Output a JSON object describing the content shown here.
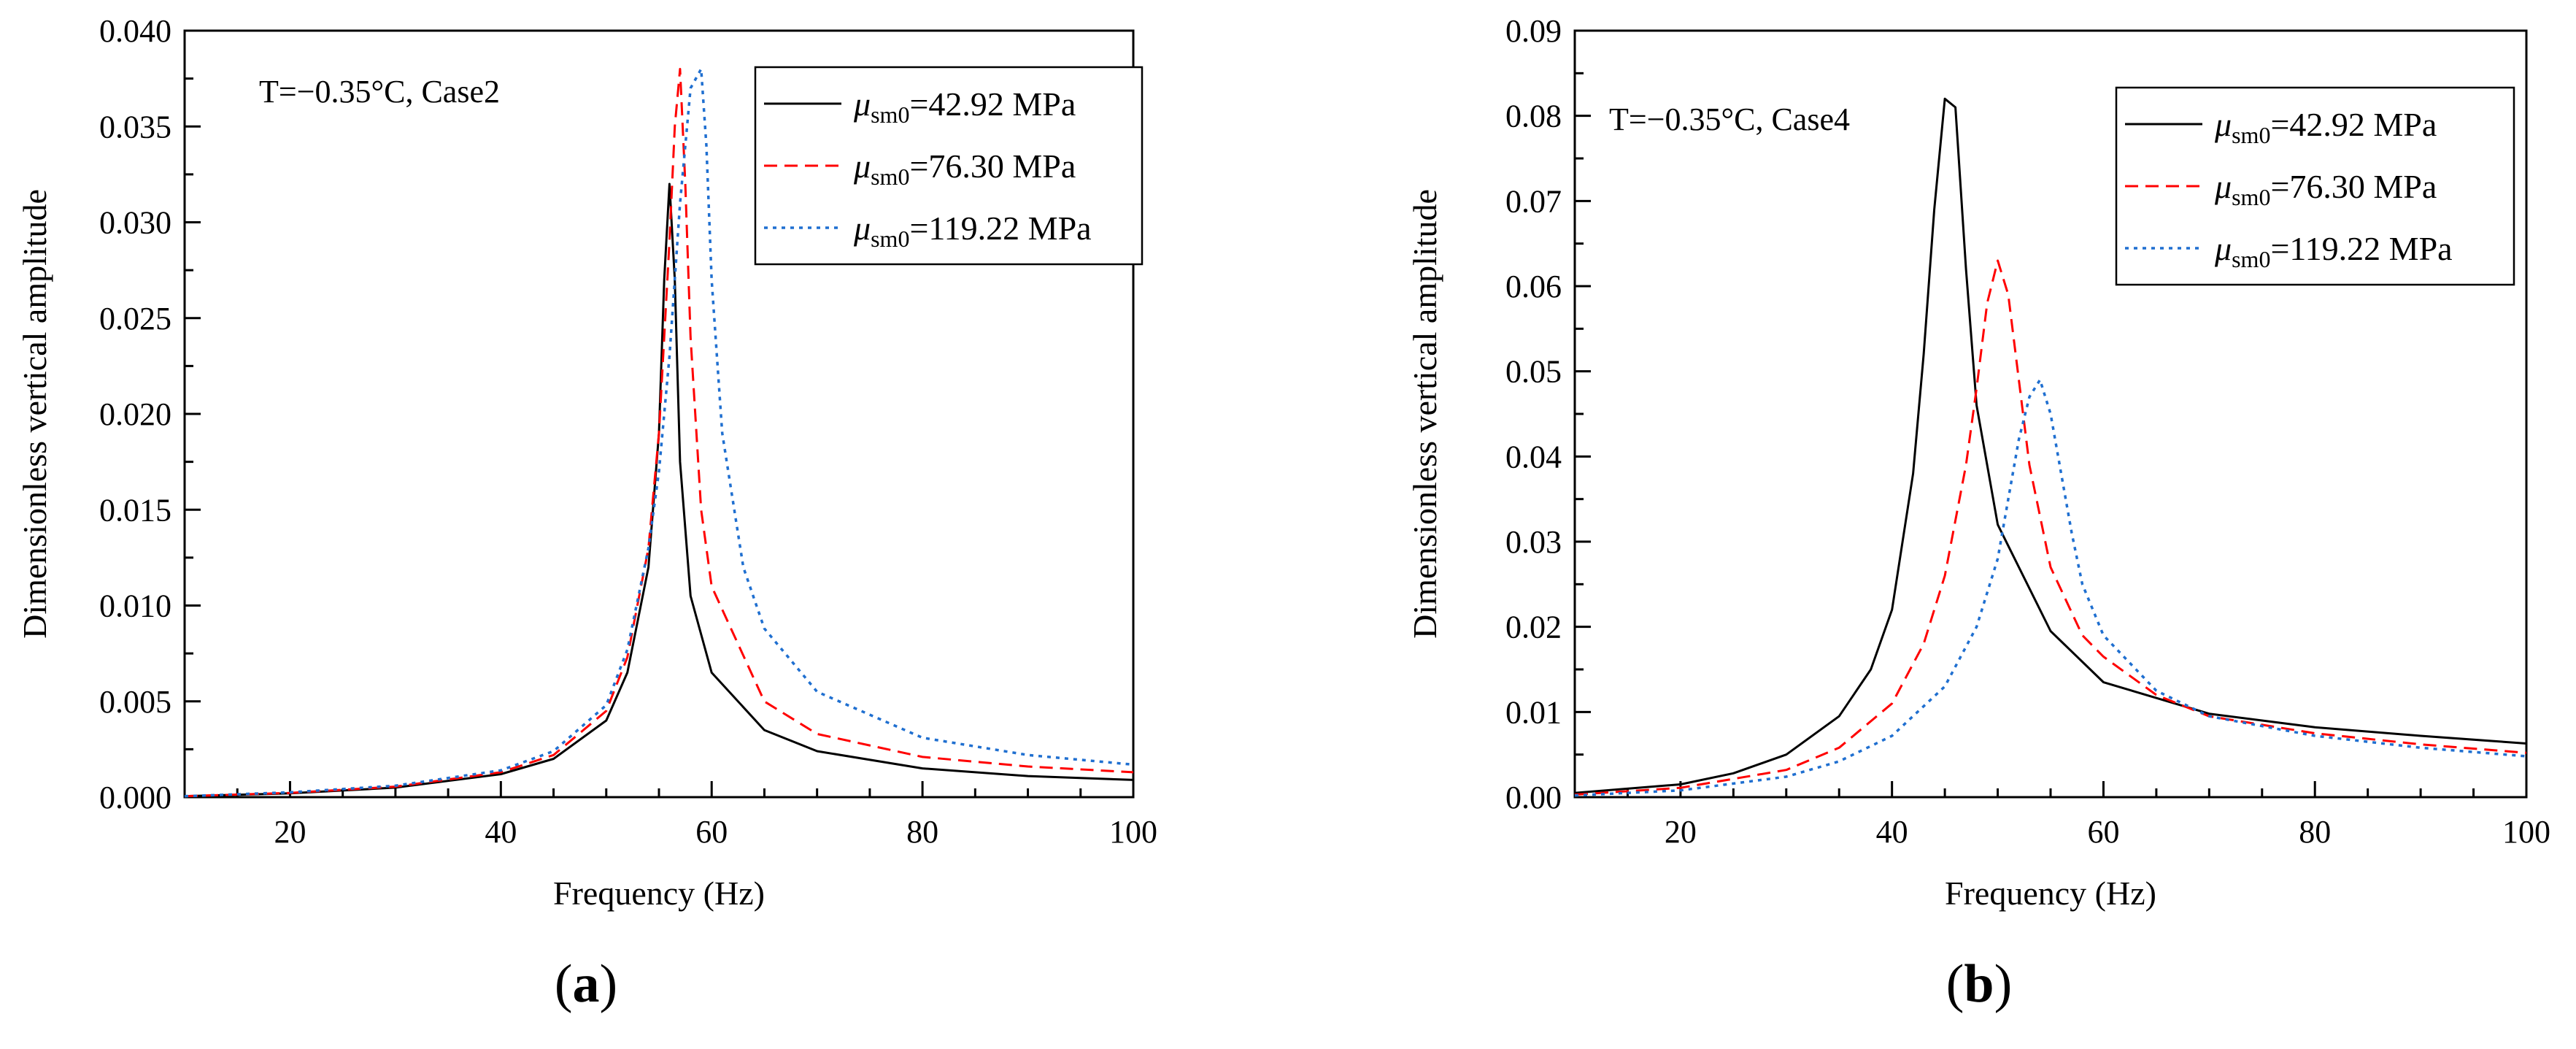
{
  "figure": {
    "panel_labels": [
      "(a)",
      "(b)"
    ]
  },
  "chart_data": [
    {
      "type": "line",
      "panel": "a",
      "annotation": "T=−0.35°C, Case2",
      "xlabel": "Frequency (Hz)",
      "ylabel": "Dimensionless vertical amplitude",
      "xlim": [
        10,
        100
      ],
      "ylim": [
        0,
        0.04
      ],
      "xticks": [
        20,
        40,
        60,
        80,
        100
      ],
      "yticks": [
        0.0,
        0.005,
        0.01,
        0.015,
        0.02,
        0.025,
        0.03,
        0.035,
        0.04
      ],
      "ytick_labels": [
        "0.000",
        "0.005",
        "0.010",
        "0.015",
        "0.020",
        "0.025",
        "0.030",
        "0.035",
        "0.040"
      ],
      "legend_position": "top-right",
      "series": [
        {
          "name": "μsm0=42.92 MPa",
          "symbol": "μ",
          "sub": "sm0",
          "value_text": "=42.92 MPa",
          "color": "#000000",
          "dash": "solid",
          "x": [
            10,
            20,
            30,
            40,
            45,
            50,
            52,
            54,
            55,
            55.5,
            56,
            56.5,
            57,
            58,
            60,
            65,
            70,
            80,
            90,
            100
          ],
          "y": [
            5e-05,
            0.0002,
            0.0005,
            0.0012,
            0.002,
            0.004,
            0.0065,
            0.012,
            0.019,
            0.027,
            0.032,
            0.027,
            0.0175,
            0.0105,
            0.0065,
            0.0035,
            0.0024,
            0.0015,
            0.0011,
            0.0009
          ]
        },
        {
          "name": "μsm0=76.30 MPa",
          "symbol": "μ",
          "sub": "sm0",
          "value_text": "=76.30 MPa",
          "color": "#ff0000",
          "dash": "dashed",
          "x": [
            10,
            20,
            30,
            40,
            45,
            50,
            52,
            54,
            55,
            56,
            56.5,
            57,
            57.5,
            58,
            59,
            60,
            65,
            70,
            80,
            90,
            100
          ],
          "y": [
            5e-05,
            0.00022,
            0.00055,
            0.0013,
            0.0022,
            0.0045,
            0.0073,
            0.013,
            0.019,
            0.029,
            0.035,
            0.038,
            0.032,
            0.024,
            0.015,
            0.011,
            0.005,
            0.0033,
            0.0021,
            0.0016,
            0.0013
          ]
        },
        {
          "name": "μsm0=119.22 MPa",
          "symbol": "μ",
          "sub": "sm0",
          "value_text": "=119.22 MPa",
          "color": "#1f6fd0",
          "dash": "dotted",
          "x": [
            10,
            20,
            30,
            40,
            45,
            50,
            52,
            54,
            55,
            56,
            57,
            58,
            58.5,
            59,
            59.5,
            60,
            61,
            63,
            65,
            70,
            80,
            90,
            100
          ],
          "y": [
            5e-05,
            0.00025,
            0.0006,
            0.0014,
            0.0024,
            0.0048,
            0.0077,
            0.013,
            0.017,
            0.023,
            0.031,
            0.037,
            0.0375,
            0.038,
            0.034,
            0.027,
            0.019,
            0.012,
            0.0088,
            0.0055,
            0.0031,
            0.0022,
            0.0017
          ]
        }
      ]
    },
    {
      "type": "line",
      "panel": "b",
      "annotation": "T=−0.35°C, Case4",
      "xlabel": "Frequency (Hz)",
      "ylabel": "Dimensionless vertical amplitude",
      "xlim": [
        10,
        100
      ],
      "ylim": [
        0,
        0.09
      ],
      "xticks": [
        20,
        40,
        60,
        80,
        100
      ],
      "yticks": [
        0.0,
        0.01,
        0.02,
        0.03,
        0.04,
        0.05,
        0.06,
        0.07,
        0.08,
        0.09
      ],
      "ytick_labels": [
        "0.00",
        "0.01",
        "0.02",
        "0.03",
        "0.04",
        "0.05",
        "0.06",
        "0.07",
        "0.08",
        "0.09"
      ],
      "legend_position": "top-right",
      "series": [
        {
          "name": "μsm0=42.92 MPa",
          "symbol": "μ",
          "sub": "sm0",
          "value_text": "=42.92 MPa",
          "color": "#000000",
          "dash": "solid",
          "x": [
            10,
            20,
            25,
            30,
            35,
            38,
            40,
            42,
            43,
            44,
            45,
            46,
            47,
            48,
            50,
            55,
            60,
            70,
            80,
            90,
            100
          ],
          "y": [
            0.0005,
            0.0015,
            0.0028,
            0.005,
            0.0095,
            0.015,
            0.022,
            0.038,
            0.052,
            0.069,
            0.082,
            0.081,
            0.062,
            0.046,
            0.032,
            0.0195,
            0.0135,
            0.0098,
            0.0082,
            0.0072,
            0.0063
          ]
        },
        {
          "name": "μsm0=76.30 MPa",
          "symbol": "μ",
          "sub": "sm0",
          "value_text": "=76.30 MPa",
          "color": "#ff0000",
          "dash": "dashed",
          "x": [
            10,
            20,
            30,
            35,
            40,
            43,
            45,
            47,
            48,
            49,
            50,
            51,
            52,
            53,
            55,
            58,
            60,
            65,
            70,
            80,
            90,
            100
          ],
          "y": [
            0.0003,
            0.0011,
            0.0032,
            0.0058,
            0.011,
            0.018,
            0.026,
            0.039,
            0.048,
            0.058,
            0.063,
            0.059,
            0.049,
            0.039,
            0.027,
            0.019,
            0.0165,
            0.012,
            0.0095,
            0.0075,
            0.0062,
            0.0052
          ]
        },
        {
          "name": "μsm0=119.22 MPa",
          "symbol": "μ",
          "sub": "sm0",
          "value_text": "=119.22 MPa",
          "color": "#1f6fd0",
          "dash": "dotted",
          "x": [
            10,
            20,
            30,
            35,
            40,
            45,
            48,
            50,
            51,
            52,
            53,
            54,
            55,
            56,
            57,
            58,
            60,
            65,
            70,
            80,
            90,
            100
          ],
          "y": [
            0.0002,
            0.0008,
            0.0024,
            0.0042,
            0.0072,
            0.013,
            0.02,
            0.028,
            0.035,
            0.042,
            0.047,
            0.049,
            0.045,
            0.038,
            0.031,
            0.025,
            0.019,
            0.0125,
            0.0095,
            0.0072,
            0.0058,
            0.0048
          ]
        }
      ]
    }
  ]
}
